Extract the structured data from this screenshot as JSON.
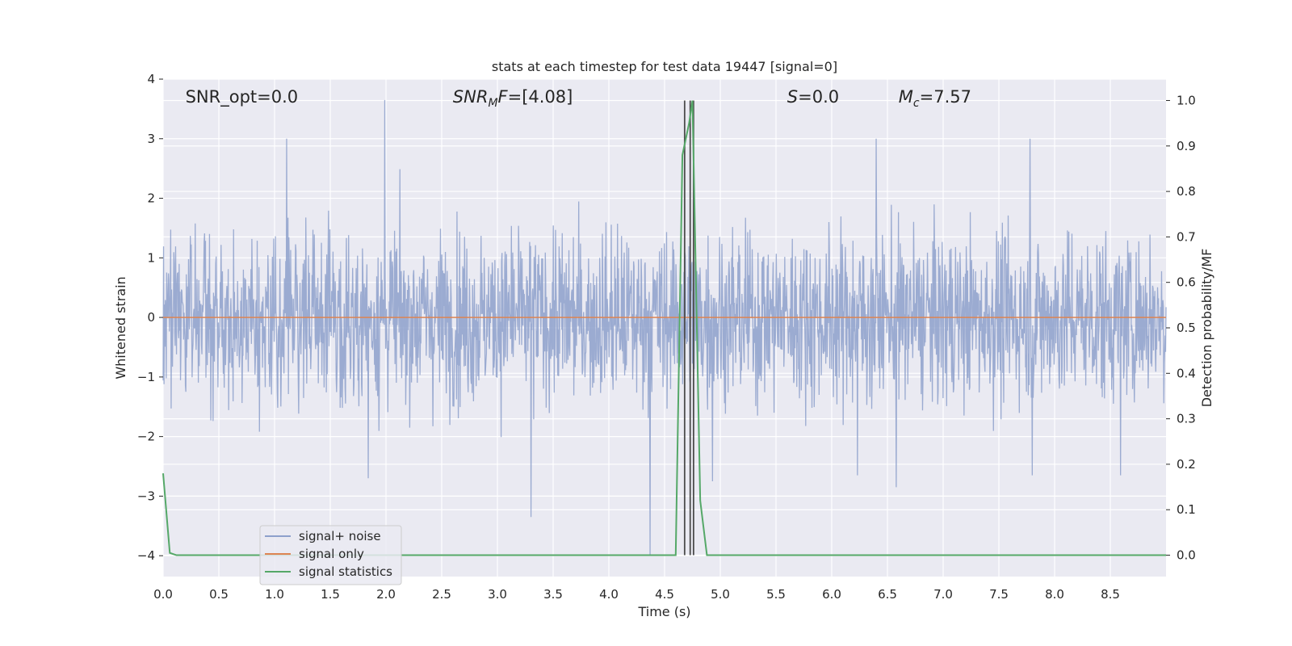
{
  "chart_data": {
    "type": "line",
    "title": "stats at each timestep for test data 19447 [signal=0]",
    "xlabel": "Time (s)",
    "ylabel": "Whitened strain",
    "y2label": "Detection probability/MF",
    "xlim": [
      0.0,
      9.0
    ],
    "ylim": [
      -4.35,
      4.0
    ],
    "y2lim": [
      -0.047,
      1.047
    ],
    "x_ticks": [
      0.0,
      0.5,
      1.0,
      1.5,
      2.0,
      2.5,
      3.0,
      3.5,
      4.0,
      4.5,
      5.0,
      5.5,
      6.0,
      6.5,
      7.0,
      7.5,
      8.0,
      8.5
    ],
    "x_tick_labels": [
      "0.0",
      "0.5",
      "1.0",
      "1.5",
      "2.0",
      "2.5",
      "3.0",
      "3.5",
      "4.0",
      "4.5",
      "5.0",
      "5.5",
      "6.0",
      "6.5",
      "7.0",
      "7.5",
      "8.0",
      "8.5"
    ],
    "y_ticks": [
      4,
      3,
      2,
      1,
      0,
      -1,
      -2,
      -3,
      -4
    ],
    "y_tick_labels": [
      "4",
      "3",
      "2",
      "1",
      "0",
      "−1",
      "−2",
      "−3",
      "−4"
    ],
    "y2_ticks": [
      1.0,
      0.9,
      0.8,
      0.7,
      0.6,
      0.5,
      0.4,
      0.3,
      0.2,
      0.1,
      0.0
    ],
    "y2_tick_labels": [
      "1.0",
      "0.9",
      "0.8",
      "0.7",
      "0.6",
      "0.5",
      "0.4",
      "0.3",
      "0.2",
      "0.1",
      "0.0"
    ],
    "grid": true,
    "legend_placement": "lower-left",
    "annotations": [
      {
        "label": "SNR_opt=0.0",
        "x": 0.2,
        "y": 3.7,
        "italic": false
      },
      {
        "label": "SNR",
        "sub": "M",
        "after": "F=[4.08]",
        "x": 2.6,
        "y": 3.7,
        "italic": true
      },
      {
        "label": "S",
        "after": "=0.0",
        "x": 5.6,
        "y": 3.7,
        "italic": true
      },
      {
        "label": "M",
        "sub": "c",
        "after": "=7.57",
        "x": 6.6,
        "y": 3.7,
        "italic": true
      }
    ],
    "series": [
      {
        "name": "signal+ noise",
        "color": "#8da0cb",
        "kind": "noise",
        "duration": 9.0,
        "samples": 2250,
        "amplitude_range": [
          -4.0,
          3.65
        ],
        "spikes": [
          {
            "x": 1.99,
            "y": 3.65
          },
          {
            "x": 1.11,
            "y": 3.0
          },
          {
            "x": 3.3,
            "y": -3.35
          },
          {
            "x": 4.37,
            "y": -4.0
          },
          {
            "x": 6.4,
            "y": 3.0
          },
          {
            "x": 7.78,
            "y": 3.0
          },
          {
            "x": 6.58,
            "y": -2.85
          },
          {
            "x": 7.8,
            "y": -2.65
          },
          {
            "x": 1.84,
            "y": -2.7
          },
          {
            "x": 4.93,
            "y": -2.75
          },
          {
            "x": 8.59,
            "y": -2.65
          },
          {
            "x": 6.23,
            "y": -2.65
          }
        ]
      },
      {
        "name": "signal only",
        "color": "#dd8452",
        "x": [
          0.0,
          9.0
        ],
        "y": [
          0.0,
          0.0
        ]
      },
      {
        "name": "signal statistics",
        "color": "#55a868",
        "axis": "right",
        "x": [
          0.0,
          0.06,
          0.12,
          0.25,
          4.6,
          4.66,
          4.72,
          4.75,
          4.82,
          4.88,
          4.94,
          9.0
        ],
        "y": [
          0.18,
          0.005,
          0.0,
          0.0,
          0.0,
          0.88,
          0.95,
          1.0,
          0.12,
          0.0,
          0.0,
          0.0
        ]
      }
    ],
    "vlines": [
      {
        "x": 4.68,
        "y_from": 0.0,
        "y_to": 1.0,
        "color": "#4d4d4d"
      },
      {
        "x": 4.73,
        "y_from": 0.0,
        "y_to": 1.0,
        "color": "#4d4d4d"
      },
      {
        "x": 4.76,
        "y_from": 0.0,
        "y_to": 1.0,
        "color": "#4d4d4d"
      }
    ]
  }
}
